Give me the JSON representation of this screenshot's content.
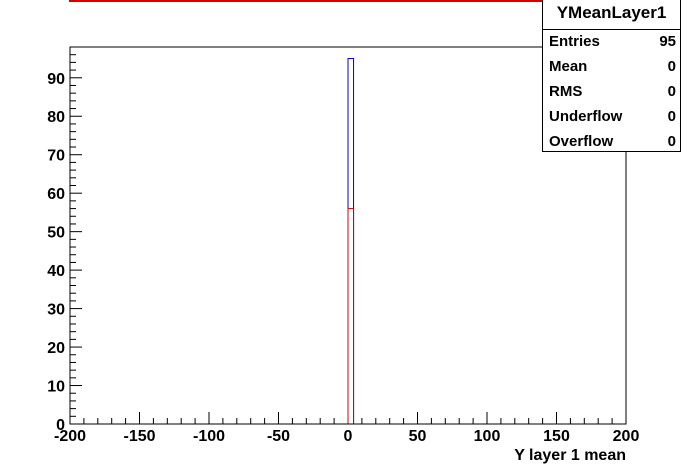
{
  "chart_data": {
    "type": "bar",
    "histogram_name": "YMeanLayer1",
    "xlabel": "Y layer 1 mean",
    "ylabel": "",
    "xlim": [
      -200,
      200
    ],
    "ylim": [
      0,
      98
    ],
    "x_ticks": [
      -200,
      -150,
      -100,
      -50,
      0,
      50,
      100,
      150,
      200
    ],
    "y_ticks": [
      0,
      10,
      20,
      30,
      40,
      50,
      60,
      70,
      80,
      90
    ],
    "series": [
      {
        "color": "#0000cc",
        "bins": [
          {
            "x0": 0,
            "x1": 4,
            "value": 95
          }
        ]
      },
      {
        "color": "#d40000",
        "bins": [
          {
            "x0": 0,
            "x1": 4,
            "value": 56
          }
        ]
      }
    ],
    "stats": [
      {
        "label": "Entries",
        "value": "95"
      },
      {
        "label": "Mean",
        "value": "0"
      },
      {
        "label": "RMS",
        "value": "0"
      },
      {
        "label": "Underflow",
        "value": "0"
      },
      {
        "label": "Overflow",
        "value": "0"
      }
    ]
  },
  "colors": {
    "frame": "#000000",
    "accent_red": "#d40000",
    "accent_blue": "#0000cc"
  }
}
